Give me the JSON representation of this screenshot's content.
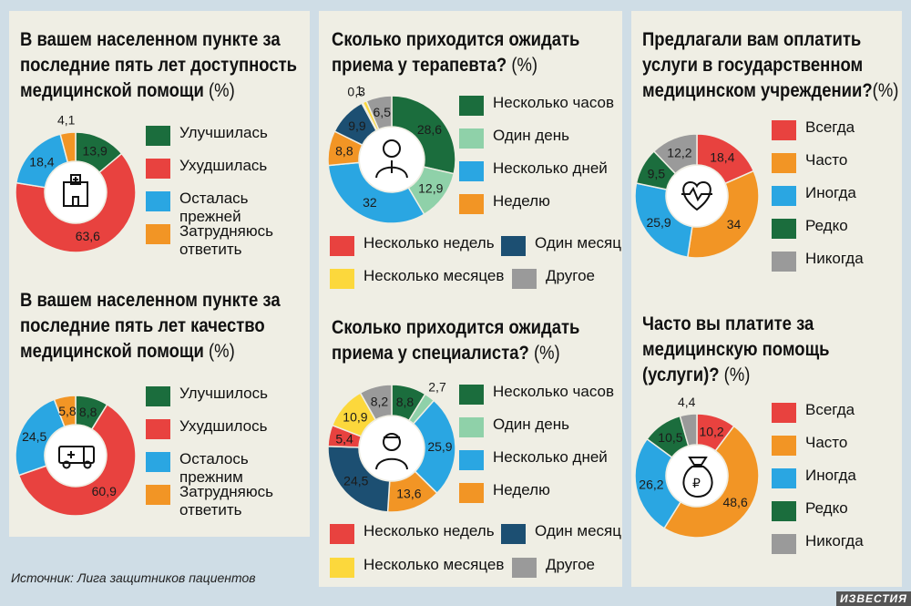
{
  "source": "Источник: Лига защитников пациентов",
  "logo": "ИЗВЕСТИЯ",
  "unit": "(%)",
  "colors": {
    "green": "#1b6d3d",
    "red": "#e8423f",
    "blue": "#2aa6e2",
    "orange": "#f29525",
    "lightgreen": "#8fd1a9",
    "darkblue": "#1c4f72",
    "yellow": "#fcd83c",
    "gray": "#9a9a9a"
  },
  "chart_data": [
    {
      "type": "pie",
      "title": "В вашем населенном пункте за последние пять лет доступность медицинской помощи",
      "icon": "hospital-icon",
      "slices": [
        {
          "label": "Улучшилась",
          "value": 13.9,
          "color": "green"
        },
        {
          "label": "Ухудшилась",
          "value": 63.6,
          "color": "red"
        },
        {
          "label": "Осталась прежней",
          "value": 18.4,
          "color": "blue"
        },
        {
          "label": "Затрудняюсь ответить",
          "value": 4.1,
          "color": "orange"
        }
      ]
    },
    {
      "type": "pie",
      "title": "В вашем населенном пункте за последние пять лет качество медицинской помощи",
      "icon": "ambulance-icon",
      "slices": [
        {
          "label": "Улучшилось",
          "value": 8.8,
          "color": "green"
        },
        {
          "label": "Ухудшилось",
          "value": 60.9,
          "color": "red"
        },
        {
          "label": "Осталось прежним",
          "value": 24.5,
          "color": "blue"
        },
        {
          "label": "Затрудняюсь ответить",
          "value": 5.8,
          "color": "orange"
        }
      ]
    },
    {
      "type": "pie",
      "title": "Сколько приходится ожидать приема у терапевта?",
      "icon": "doctor-icon",
      "slices": [
        {
          "label": "Несколько часов",
          "value": 28.6,
          "color": "green"
        },
        {
          "label": "Один день",
          "value": 12.9,
          "color": "lightgreen"
        },
        {
          "label": "Несколько дней",
          "value": 32,
          "color": "blue"
        },
        {
          "label": "Неделю",
          "value": 8.8,
          "color": "orange"
        },
        {
          "label": "Один месяц",
          "value": 9.9,
          "color": "darkblue"
        },
        {
          "label": "Несколько недель",
          "value": 0.3,
          "color": "red"
        },
        {
          "label": "Несколько месяцев",
          "value": 1,
          "color": "yellow"
        },
        {
          "label": "Другое",
          "value": 6.5,
          "color": "gray"
        }
      ]
    },
    {
      "type": "pie",
      "title": "Сколько приходится ожидать приема у специалиста?",
      "icon": "specialist-icon",
      "slices": [
        {
          "label": "Несколько часов",
          "value": 8.8,
          "color": "green"
        },
        {
          "label": "Один день",
          "value": 2.7,
          "color": "lightgreen"
        },
        {
          "label": "Несколько дней",
          "value": 25.9,
          "color": "blue"
        },
        {
          "label": "Неделю",
          "value": 13.6,
          "color": "orange"
        },
        {
          "label": "Один месяц",
          "value": 24.5,
          "color": "darkblue"
        },
        {
          "label": "Несколько недель",
          "value": 5.4,
          "color": "red"
        },
        {
          "label": "Несколько месяцев",
          "value": 10.9,
          "color": "yellow"
        },
        {
          "label": "Другое",
          "value": 8.2,
          "color": "gray"
        }
      ]
    },
    {
      "type": "pie",
      "title": "Предлагали вам оплатить услуги в государственном медицинском учреждении?",
      "icon": "heart-icon",
      "slices": [
        {
          "label": "Всегда",
          "value": 18.4,
          "color": "red"
        },
        {
          "label": "Часто",
          "value": 34,
          "color": "orange"
        },
        {
          "label": "Иногда",
          "value": 25.9,
          "color": "blue"
        },
        {
          "label": "Редко",
          "value": 9.5,
          "color": "green"
        },
        {
          "label": "Никогда",
          "value": 12.2,
          "color": "gray"
        }
      ]
    },
    {
      "type": "pie",
      "title": "Часто вы платите за медицинскую помощь (услуги)?",
      "icon": "money-bag-icon",
      "slices": [
        {
          "label": "Всегда",
          "value": 10.2,
          "color": "red"
        },
        {
          "label": "Часто",
          "value": 48.6,
          "color": "orange"
        },
        {
          "label": "Иногда",
          "value": 26.2,
          "color": "blue"
        },
        {
          "label": "Редко",
          "value": 10.5,
          "color": "green"
        },
        {
          "label": "Никогда",
          "value": 4.4,
          "color": "gray"
        }
      ]
    }
  ],
  "legends": {
    "c1": [
      "Улучшилась",
      "Ухудшилась",
      "Осталась прежней",
      "Затрудняюсь ответить"
    ],
    "c2": [
      "Улучшилось",
      "Ухудшилось",
      "Осталось прежним",
      "Затрудняюсь ответить"
    ],
    "wait": [
      "Несколько часов",
      "Один день",
      "Несколько дней",
      "Неделю",
      "Несколько недель",
      "Один месяц",
      "Несколько месяцев",
      "Другое"
    ],
    "pay": [
      "Всегда",
      "Часто",
      "Иногда",
      "Редко",
      "Никогда"
    ]
  }
}
